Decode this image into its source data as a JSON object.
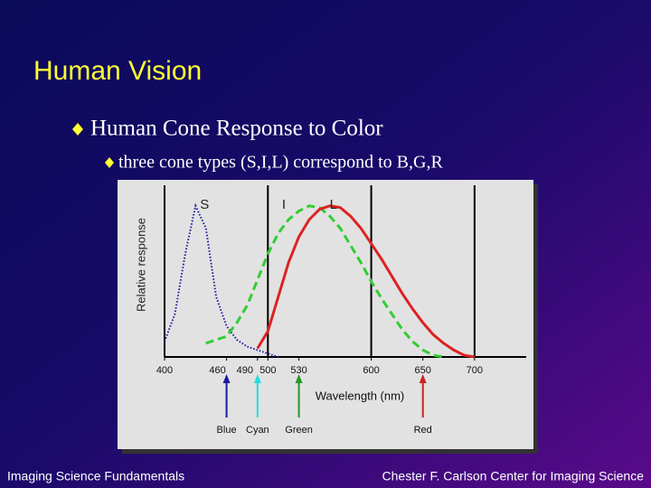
{
  "title": "Human Vision",
  "bullet": "Human Cone Response to Color",
  "sub_bullet": "three cone types (S,I,L) correspond to B,G,R",
  "footer_left": "Imaging Science Fundamentals",
  "footer_right": "Chester F. Carlson Center for Imaging Science",
  "chart_data": {
    "type": "line",
    "x_label": "Wavelength (nm)",
    "y_label": "Relative response",
    "x": [
      400,
      410,
      420,
      430,
      440,
      450,
      460,
      470,
      480,
      490,
      500,
      510,
      520,
      530,
      540,
      550,
      560,
      570,
      580,
      590,
      600,
      610,
      620,
      630,
      640,
      650,
      660,
      670,
      680,
      690,
      700
    ],
    "series": [
      {
        "name": "S",
        "color": "#1a1aa0",
        "style": "dotted",
        "values": [
          0.09,
          0.25,
          0.6,
          0.88,
          0.75,
          0.35,
          0.18,
          0.1,
          0.06,
          0.04,
          0.02,
          0,
          null,
          null,
          null,
          null,
          null,
          null,
          null,
          null,
          null,
          null,
          null,
          null,
          null,
          null,
          null,
          null,
          null,
          null,
          null
        ]
      },
      {
        "name": "I",
        "color": "#33cc33",
        "style": "dashed",
        "values": [
          null,
          null,
          null,
          null,
          0.08,
          0.1,
          0.12,
          0.2,
          0.3,
          0.45,
          0.6,
          0.72,
          0.8,
          0.85,
          0.88,
          0.87,
          0.82,
          0.75,
          0.65,
          0.55,
          0.44,
          0.34,
          0.25,
          0.16,
          0.09,
          0.04,
          0.01,
          0,
          null,
          null,
          null
        ]
      },
      {
        "name": "L",
        "color": "#dd2222",
        "style": "solid",
        "values": [
          null,
          null,
          null,
          null,
          null,
          null,
          null,
          null,
          null,
          0.05,
          0.15,
          0.35,
          0.55,
          0.7,
          0.8,
          0.86,
          0.88,
          0.87,
          0.82,
          0.75,
          0.66,
          0.57,
          0.47,
          0.37,
          0.28,
          0.2,
          0.13,
          0.08,
          0.04,
          0.01,
          0
        ]
      }
    ],
    "xlim": [
      400,
      750
    ],
    "ylim": [
      0,
      1
    ],
    "xticks": [
      400,
      460,
      490,
      500,
      530,
      600,
      650,
      700
    ],
    "vlines": [
      500,
      600,
      700
    ],
    "markers": [
      {
        "label": "Blue",
        "x": 460,
        "color": "#1a1aa0"
      },
      {
        "label": "Cyan",
        "x": 490,
        "color": "#22dddd"
      },
      {
        "label": "Green",
        "x": 530,
        "color": "#229922"
      },
      {
        "label": "Red",
        "x": 650,
        "color": "#cc2222"
      }
    ]
  }
}
